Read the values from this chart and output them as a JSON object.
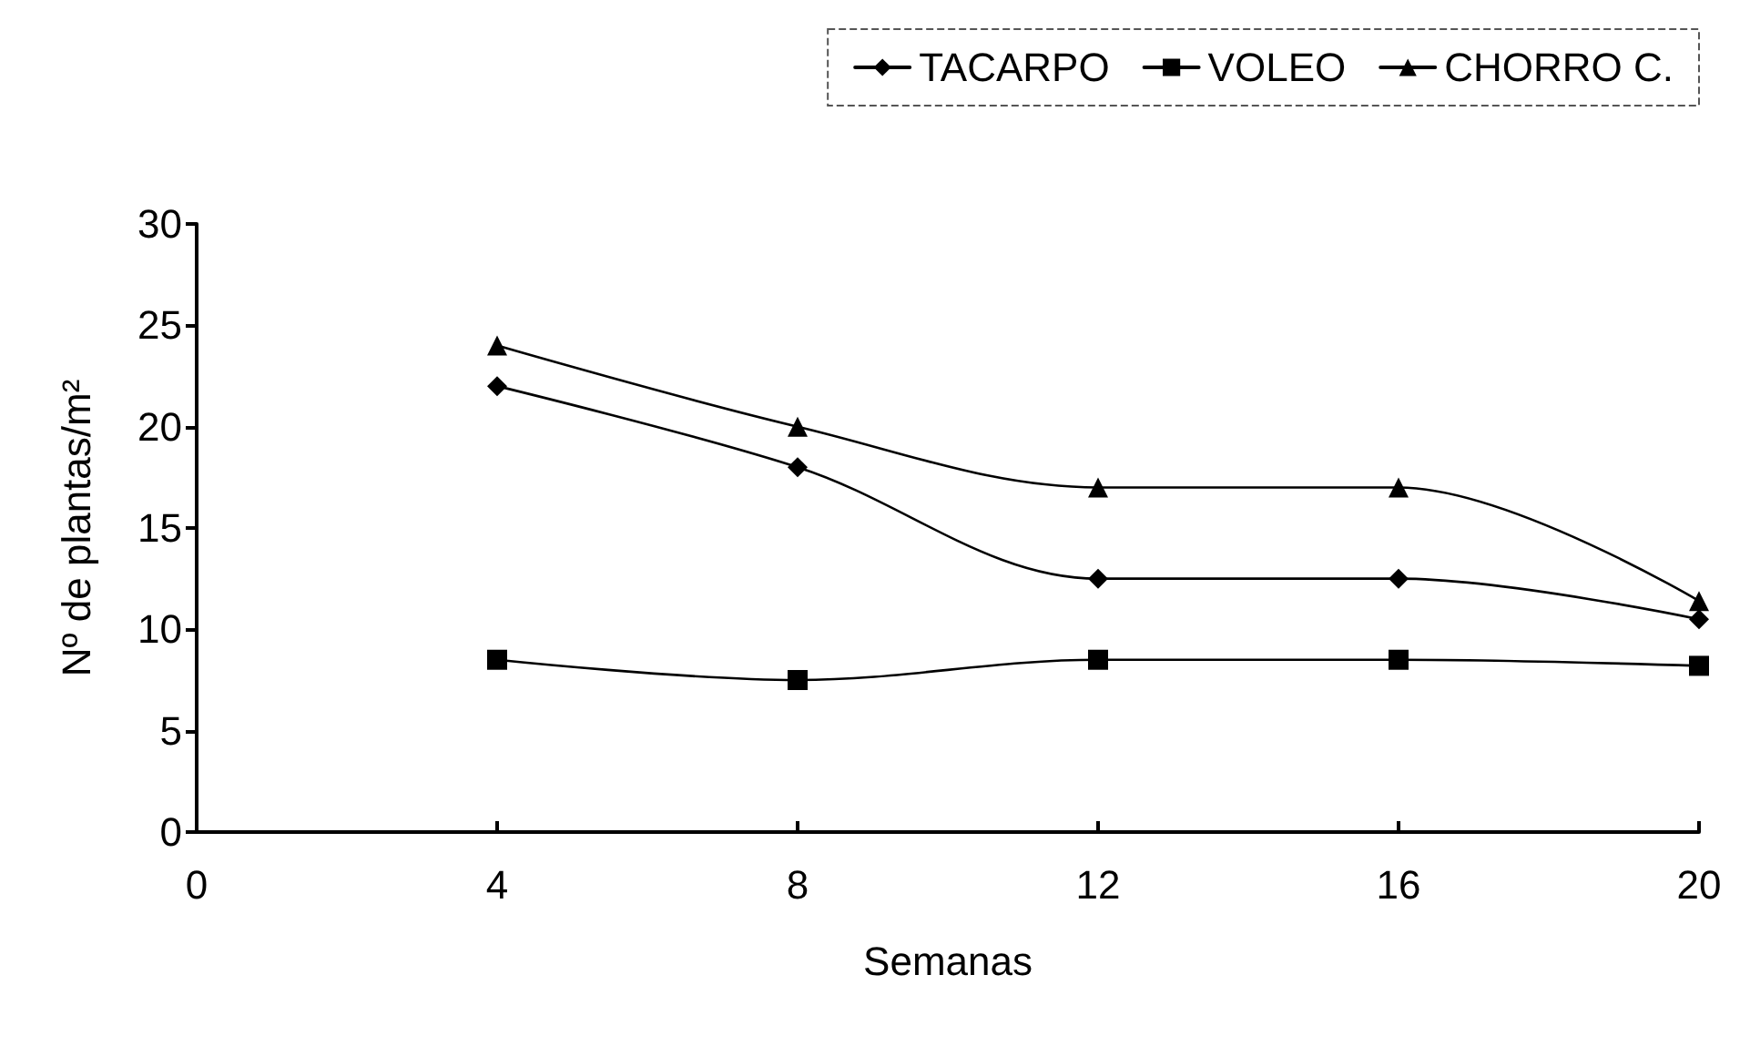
{
  "chart_data": {
    "type": "line",
    "xlabel": "Semanas",
    "ylabel": "Nº de plantas/m²",
    "x": [
      4,
      8,
      12,
      16,
      20
    ],
    "series": [
      {
        "name": "TACARPO",
        "color": "#000000",
        "marker": "diamond",
        "values": [
          22,
          18,
          12.5,
          12.5,
          10.5
        ]
      },
      {
        "name": "VOLEO",
        "color": "#000000",
        "marker": "square",
        "values": [
          8.5,
          7.5,
          8.5,
          8.5,
          8.2
        ]
      },
      {
        "name": "CHORRO C.",
        "color": "#000000",
        "marker": "triangle",
        "values": [
          24,
          20,
          17,
          17,
          11.4
        ]
      }
    ],
    "xlim": [
      0,
      20
    ],
    "xticks": [
      0,
      4,
      8,
      12,
      16,
      20
    ],
    "ylim": [
      0,
      30
    ],
    "yticks": [
      0,
      5,
      10,
      15,
      20,
      25,
      30
    ],
    "grid": false,
    "legend": "top right"
  }
}
